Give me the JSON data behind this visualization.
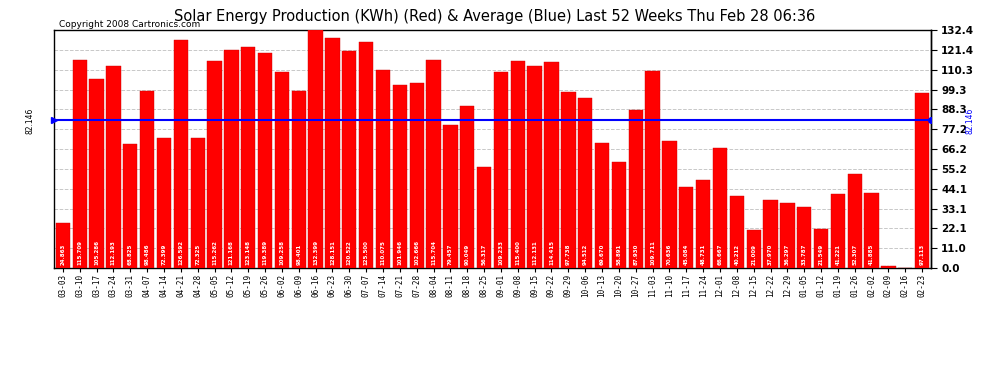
{
  "title": "Solar Energy Production (KWh) (Red) & Average (Blue) Last 52 Weeks Thu Feb 28 06:36",
  "copyright": "Copyright 2008 Cartronics.com",
  "average": 82.146,
  "categories": [
    "03-03",
    "03-10",
    "03-17",
    "03-24",
    "03-31",
    "04-07",
    "04-14",
    "04-21",
    "04-28",
    "05-05",
    "05-12",
    "05-19",
    "05-26",
    "06-02",
    "06-09",
    "06-16",
    "06-23",
    "06-30",
    "07-07",
    "07-14",
    "07-21",
    "07-28",
    "08-04",
    "08-11",
    "08-18",
    "08-25",
    "09-01",
    "09-08",
    "09-15",
    "09-22",
    "09-29",
    "10-06",
    "10-13",
    "10-20",
    "10-27",
    "11-03",
    "11-10",
    "11-17",
    "11-24",
    "12-01",
    "12-08",
    "12-15",
    "12-22",
    "12-29",
    "01-05",
    "01-12",
    "01-19",
    "01-26",
    "02-02",
    "02-09",
    "02-16",
    "02-23"
  ],
  "values": [
    24.863,
    115.709,
    105.286,
    112.193,
    68.825,
    98.486,
    72.399,
    126.592,
    72.325,
    115.262,
    121.168,
    123.148,
    119.389,
    109.258,
    98.401,
    132.399,
    128.151,
    120.522,
    125.5,
    110.075,
    101.946,
    102.666,
    115.704,
    79.457,
    90.049,
    56.317,
    109.233,
    115.4,
    112.131,
    114.415,
    97.738,
    94.512,
    69.67,
    58.891,
    87.93,
    109.711,
    70.636,
    45.084,
    48.731,
    66.667,
    40.212,
    21.009,
    37.97,
    36.297,
    33.787,
    21.549,
    41.221,
    52.307,
    41.885,
    1.413,
    0.0,
    97.113
  ],
  "ylim_max": 132.4,
  "yticks": [
    0.0,
    11.0,
    22.1,
    33.1,
    44.1,
    55.2,
    66.2,
    77.2,
    88.3,
    99.3,
    110.3,
    121.4,
    132.4
  ],
  "bar_color": "#FF0000",
  "avg_line_color": "#0000FF",
  "bg_color": "#FFFFFF",
  "grid_color": "#C8C8C8",
  "title_fontsize": 10.5,
  "copyright_fontsize": 6.5,
  "val_fontsize": 4.0,
  "xtick_fontsize": 5.5,
  "ytick_fontsize": 7.5
}
